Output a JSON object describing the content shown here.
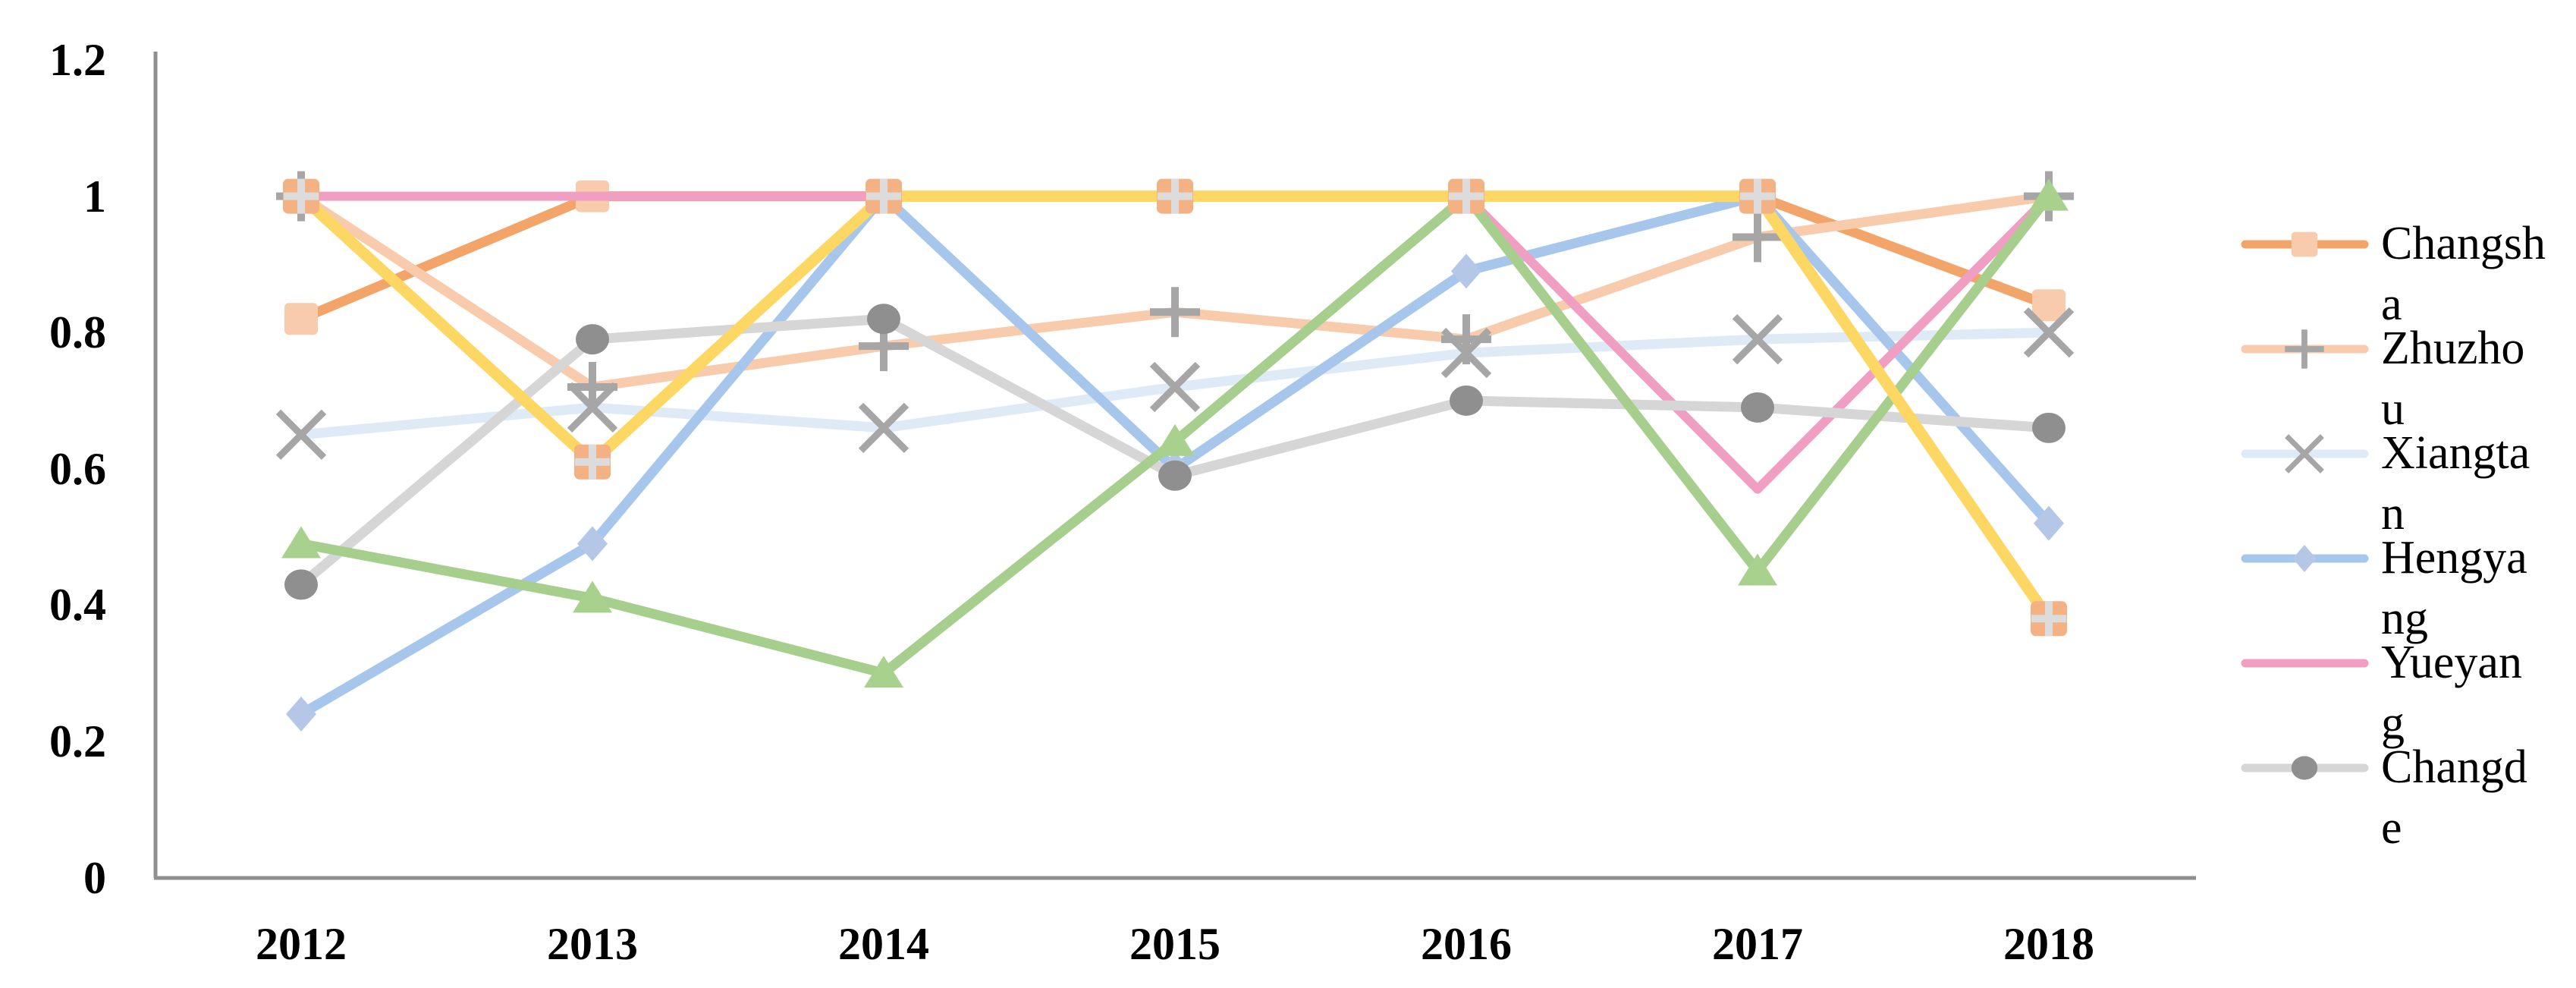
{
  "chart_data": {
    "type": "line",
    "title": "",
    "grid": false,
    "legend_position": "right",
    "x_axis": {
      "categories": [
        "2012",
        "2013",
        "2014",
        "2015",
        "2016",
        "2017",
        "2018"
      ]
    },
    "y_axis": {
      "min": 0,
      "max": 1.2,
      "tick_step": 0.2,
      "tick_labels": [
        "1.2",
        "1",
        "0.8",
        "0.6",
        "0.4",
        "0.2",
        "0"
      ]
    },
    "axis_color": "#8F8F8F",
    "series": [
      {
        "name": "Changsha",
        "legend_lines": [
          "Changsh",
          "a"
        ],
        "in_legend": true,
        "color": "#F2A469",
        "marker": "square",
        "marker_fill": "#F8CBAD",
        "values": [
          0.82,
          1,
          1,
          1,
          1,
          1,
          0.84
        ]
      },
      {
        "name": "Zhuzhou",
        "legend_lines": [
          "Zhuzho",
          "u"
        ],
        "in_legend": true,
        "color": "#F8CBAD",
        "marker": "plus",
        "marker_fill": "#A6A6A6",
        "values": [
          1,
          0.72,
          0.78,
          0.83,
          0.79,
          0.94,
          1
        ]
      },
      {
        "name": "Xiangtan",
        "legend_lines": [
          "Xiangta",
          "n"
        ],
        "in_legend": true,
        "color": "#DEEBF7",
        "marker": "x",
        "marker_fill": "#A6A6A6",
        "values": [
          0.65,
          0.69,
          0.66,
          0.72,
          0.77,
          0.79,
          0.8
        ]
      },
      {
        "name": "Hengyang",
        "legend_lines": [
          "Hengya",
          "ng"
        ],
        "in_legend": true,
        "color": "#A6C7EB",
        "marker": "diamond",
        "marker_fill": "#B4C7E7",
        "values": [
          0.24,
          0.49,
          1,
          0.6,
          0.89,
          1,
          0.52
        ]
      },
      {
        "name": "Yueyang",
        "legend_lines": [
          "Yueyan",
          "g"
        ],
        "in_legend": true,
        "color": "#F09EC1",
        "marker": "none",
        "marker_fill": "",
        "values": [
          1,
          1,
          1,
          1,
          1,
          0.57,
          1
        ]
      },
      {
        "name": "Changde",
        "legend_lines": [
          "Changd",
          "e"
        ],
        "in_legend": true,
        "color": "#D6D6D6",
        "marker": "circle",
        "marker_fill": "#8F8F8F",
        "values": [
          0.43,
          0.79,
          0.82,
          0.59,
          0.7,
          0.69,
          0.66
        ]
      },
      {
        "name": "",
        "legend_lines": [],
        "in_legend": false,
        "color": "#A6CF8D",
        "marker": "triangle",
        "marker_fill": "#A9D18E",
        "values": [
          0.49,
          0.41,
          0.3,
          0.64,
          1,
          0.45,
          1
        ]
      },
      {
        "name": "",
        "legend_lines": [],
        "in_legend": false,
        "color": "#FDD763",
        "marker": "square-plus",
        "marker_fill": "#F4B183",
        "marker_accent": "#DCDCDC",
        "values": [
          1,
          0.61,
          1,
          1,
          1,
          1,
          0.38
        ]
      }
    ]
  }
}
